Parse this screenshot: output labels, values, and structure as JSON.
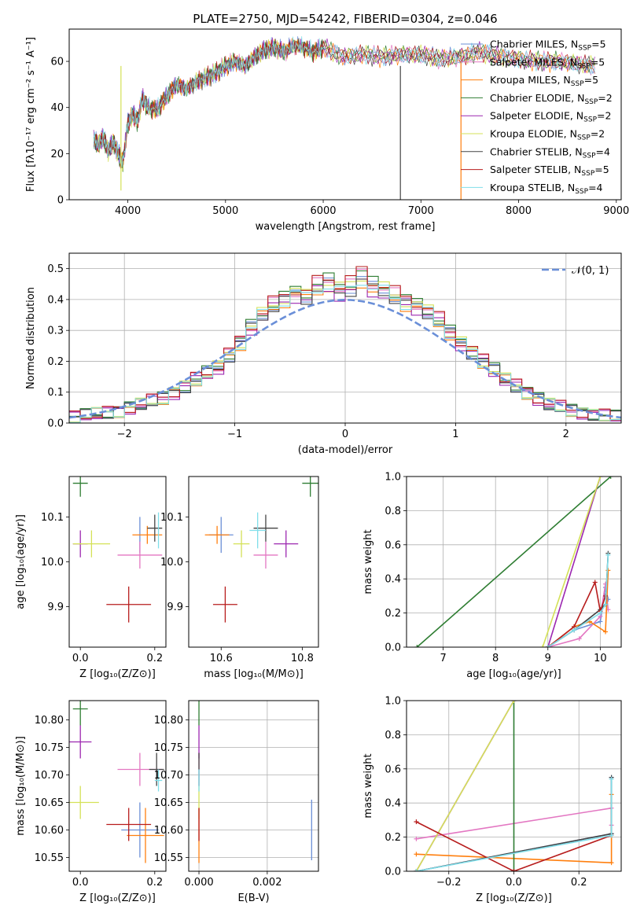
{
  "figure_title": "PLATE=2750, MJD=54242, FIBERID=0304, z=0.046",
  "colors": {
    "chabrier_miles": "#6b8fd6",
    "salpeter_miles": "#e377c2",
    "kroupa_miles": "#ff7f0e",
    "chabrier_elodie": "#2e7d32",
    "salpeter_elodie": "#9c27b0",
    "kroupa_elodie": "#d4e157",
    "chabrier_stelib": "#444444",
    "salpeter_stelib": "#b71c1c",
    "kroupa_stelib": "#80deea",
    "normal_curve": "#6a8fd8"
  },
  "chart_data": [
    {
      "id": "spectrum",
      "type": "line",
      "xlabel": "wavelength [Angstrom, rest frame]",
      "ylabel": "Flux [fλ10⁻¹⁷ erg cm⁻² s⁻¹ A⁻¹]",
      "xlim": [
        3400,
        9050
      ],
      "ylim": [
        0,
        74
      ],
      "xticks": [
        4000,
        5000,
        6000,
        7000,
        8000,
        9000
      ],
      "yticks": [
        0,
        20,
        40,
        60
      ],
      "legend_position": "top-right",
      "legend": [
        "Chabrier MILES, N_SSP=5",
        "Salpeter MILES, N_SSP=5",
        "Kroupa MILES, N_SSP=5",
        "Chabrier ELODIE, N_SSP=2",
        "Salpeter ELODIE, N_SSP=2",
        "Kroupa ELODIE, N_SSP=2",
        "Chabrier STELIB, N_SSP=4",
        "Salpeter STELIB, N_SSP=5",
        "Kroupa STELIB, N_SSP=4"
      ],
      "spectrum_x": [
        3650,
        3700,
        3750,
        3800,
        3850,
        3900,
        3950,
        4000,
        4050,
        4100,
        4150,
        4200,
        4300,
        4400,
        4500,
        4600,
        4700,
        4800,
        4900,
        5000,
        5100,
        5200,
        5300,
        5400,
        5500,
        5600,
        5700,
        5800,
        5900,
        6000,
        6200,
        6400,
        6600,
        6800,
        7000,
        7200,
        7400,
        7600,
        7800,
        8000,
        8200,
        8400,
        8600,
        8800
      ],
      "spectrum_y": [
        26,
        24,
        27,
        21,
        25,
        20,
        16,
        33,
        37,
        34,
        44,
        40,
        39,
        45,
        50,
        48,
        51,
        53,
        55,
        58,
        60,
        58,
        62,
        65,
        66,
        64,
        67,
        66,
        64,
        66,
        62,
        63,
        62,
        63,
        63,
        61,
        62,
        64,
        62,
        61,
        60,
        60,
        59,
        58
      ],
      "spectrum_dips": [
        [
          3930,
          4
        ],
        [
          6790,
          0
        ]
      ]
    },
    {
      "id": "residual-histogram",
      "type": "bar",
      "xlabel": "(data-model)/error",
      "ylabel": "Normed distribution",
      "xlim": [
        -2.5,
        2.5
      ],
      "ylim": [
        0,
        0.55
      ],
      "xticks": [
        -2,
        -1,
        0,
        1,
        2
      ],
      "yticks": [
        0.0,
        0.1,
        0.2,
        0.3,
        0.4,
        0.5
      ],
      "legend": [
        "𝒩(0, 1)"
      ],
      "bin_edges": [
        -2.5,
        -2.4,
        -2.3,
        -2.2,
        -2.1,
        -2.0,
        -1.9,
        -1.8,
        -1.7,
        -1.6,
        -1.5,
        -1.4,
        -1.3,
        -1.2,
        -1.1,
        -1.0,
        -0.9,
        -0.8,
        -0.7,
        -0.6,
        -0.5,
        -0.4,
        -0.3,
        -0.2,
        -0.1,
        0.0,
        0.1,
        0.2,
        0.3,
        0.4,
        0.5,
        0.6,
        0.7,
        0.8,
        0.9,
        1.0,
        1.1,
        1.2,
        1.3,
        1.4,
        1.5,
        1.6,
        1.7,
        1.8,
        1.9,
        2.0,
        2.1,
        2.2,
        2.3,
        2.4,
        2.5
      ],
      "hist_values": [
        0.02,
        0.025,
        0.03,
        0.035,
        0.04,
        0.05,
        0.06,
        0.07,
        0.08,
        0.1,
        0.12,
        0.14,
        0.16,
        0.18,
        0.22,
        0.26,
        0.31,
        0.35,
        0.38,
        0.4,
        0.42,
        0.41,
        0.44,
        0.45,
        0.43,
        0.44,
        0.47,
        0.44,
        0.43,
        0.41,
        0.39,
        0.38,
        0.36,
        0.33,
        0.29,
        0.26,
        0.23,
        0.2,
        0.17,
        0.14,
        0.12,
        0.1,
        0.08,
        0.06,
        0.05,
        0.04,
        0.035,
        0.03,
        0.025,
        0.02
      ],
      "series_offsets": [
        0.0,
        0.015,
        -0.015,
        0.02,
        -0.02,
        0.01,
        -0.01,
        0.025,
        -0.005
      ],
      "normal_curve": "N(0,1)"
    },
    {
      "id": "age-vs-Z",
      "type": "scatter",
      "xlabel": "Z [log₁₀(Z/Z⊙)]",
      "ylabel": "age  [log₁₀(age/yr)]",
      "xlim": [
        -0.03,
        0.23
      ],
      "ylim": [
        9.81,
        10.19
      ],
      "xticks": [
        0.0,
        0.2
      ],
      "yticks": [
        9.9,
        10.0,
        10.1
      ],
      "points": [
        {
          "x": 0.16,
          "y": 10.06,
          "xerr": 0.0,
          "yerr": 0.04
        },
        {
          "x": 0.16,
          "y": 10.015,
          "xerr": 0.06,
          "yerr": 0.03
        },
        {
          "x": 0.18,
          "y": 10.06,
          "xerr": 0.04,
          "yerr": 0.02
        },
        {
          "x": 0.0,
          "y": 10.175,
          "xerr": 0.02,
          "yerr": 0.03
        },
        {
          "x": 0.0,
          "y": 10.04,
          "xerr": 0.02,
          "yerr": 0.03
        },
        {
          "x": 0.03,
          "y": 10.04,
          "xerr": 0.05,
          "yerr": 0.03
        },
        {
          "x": 0.2,
          "y": 10.075,
          "xerr": 0.02,
          "yerr": 0.03
        },
        {
          "x": 0.13,
          "y": 9.905,
          "xerr": 0.06,
          "yerr": 0.04
        },
        {
          "x": 0.21,
          "y": 10.07,
          "xerr": 0.0,
          "yerr": 0.04
        }
      ]
    },
    {
      "id": "age-vs-mass",
      "type": "scatter",
      "xlabel": "mass [log₁₀(M/M⊙)]",
      "ylabel": "",
      "xlim": [
        10.52,
        10.84
      ],
      "ylim": [
        9.81,
        10.19
      ],
      "xticks": [
        10.6,
        10.8
      ],
      "yticks": [
        9.9,
        10.0,
        10.1
      ],
      "points": [
        {
          "x": 10.6,
          "y": 10.06,
          "xerr": 0.03,
          "yerr": 0.04
        },
        {
          "x": 10.71,
          "y": 10.015,
          "xerr": 0.03,
          "yerr": 0.03
        },
        {
          "x": 10.59,
          "y": 10.06,
          "xerr": 0.03,
          "yerr": 0.02
        },
        {
          "x": 10.82,
          "y": 10.175,
          "xerr": 0.02,
          "yerr": 0.03
        },
        {
          "x": 10.76,
          "y": 10.04,
          "xerr": 0.03,
          "yerr": 0.03
        },
        {
          "x": 10.65,
          "y": 10.04,
          "xerr": 0.02,
          "yerr": 0.03
        },
        {
          "x": 10.71,
          "y": 10.075,
          "xerr": 0.03,
          "yerr": 0.03
        },
        {
          "x": 10.61,
          "y": 9.905,
          "xerr": 0.03,
          "yerr": 0.04
        },
        {
          "x": 10.69,
          "y": 10.07,
          "xerr": 0.02,
          "yerr": 0.04
        }
      ]
    },
    {
      "id": "weight-vs-age",
      "type": "line",
      "xlabel": "age  [log₁₀(age/yr)]",
      "ylabel": "mass weight",
      "xlim": [
        6.3,
        10.4
      ],
      "ylim": [
        0,
        1.0
      ],
      "xticks": [
        7,
        8,
        9,
        10
      ],
      "yticks": [
        0.0,
        0.2,
        0.4,
        0.6,
        0.8,
        1.0
      ],
      "series": [
        {
          "x": [
            9.0,
            9.5,
            10.0,
            10.1,
            10.15
          ],
          "y": [
            0.0,
            0.1,
            0.15,
            0.35,
            0.28
          ]
        },
        {
          "x": [
            9.0,
            9.6,
            10.0,
            10.1,
            10.15
          ],
          "y": [
            0.0,
            0.05,
            0.18,
            0.37,
            0.22
          ]
        },
        {
          "x": [
            9.0,
            9.5,
            9.8,
            10.1,
            10.15
          ],
          "y": [
            0.0,
            0.12,
            0.15,
            0.09,
            0.45
          ]
        },
        {
          "x": [
            6.5,
            10.2
          ],
          "y": [
            0.0,
            1.0
          ]
        },
        {
          "x": [
            9.0,
            10.0
          ],
          "y": [
            0.0,
            1.0
          ]
        },
        {
          "x": [
            8.9,
            10.0
          ],
          "y": [
            0.0,
            1.0
          ]
        },
        {
          "x": [
            9.0,
            9.5,
            10.0,
            10.1,
            10.15
          ],
          "y": [
            0.0,
            0.1,
            0.22,
            0.25,
            0.55
          ]
        },
        {
          "x": [
            9.0,
            9.5,
            9.9,
            10.0,
            10.1
          ],
          "y": [
            0.0,
            0.12,
            0.38,
            0.21,
            0.3
          ]
        },
        {
          "x": [
            9.0,
            9.5,
            10.0,
            10.1,
            10.15
          ],
          "y": [
            0.0,
            0.1,
            0.2,
            0.25,
            0.54
          ]
        }
      ]
    },
    {
      "id": "mass-vs-Z",
      "type": "scatter",
      "xlabel": "Z [log₁₀(Z/Z⊙)]",
      "ylabel": "mass [log₁₀(M/M⊙)]",
      "xlim": [
        -0.03,
        0.23
      ],
      "ylim": [
        10.525,
        10.835
      ],
      "xticks": [
        0.0,
        0.2
      ],
      "yticks": [
        10.55,
        10.6,
        10.65,
        10.7,
        10.75,
        10.8
      ],
      "points": [
        {
          "x": 0.16,
          "y": 10.6,
          "xerr": 0.05,
          "yerr": 0.05
        },
        {
          "x": 0.16,
          "y": 10.71,
          "xerr": 0.06,
          "yerr": 0.03
        },
        {
          "x": 0.175,
          "y": 10.59,
          "xerr": 0.05,
          "yerr": 0.05
        },
        {
          "x": 0.0,
          "y": 10.82,
          "xerr": 0.02,
          "yerr": 0.03
        },
        {
          "x": 0.0,
          "y": 10.76,
          "xerr": 0.03,
          "yerr": 0.03
        },
        {
          "x": 0.0,
          "y": 10.65,
          "xerr": 0.05,
          "yerr": 0.03
        },
        {
          "x": 0.205,
          "y": 10.71,
          "xerr": 0.02,
          "yerr": 0.03
        },
        {
          "x": 0.13,
          "y": 10.61,
          "xerr": 0.06,
          "yerr": 0.03
        },
        {
          "x": 0.21,
          "y": 10.69,
          "xerr": 0.01,
          "yerr": 0.02
        }
      ]
    },
    {
      "id": "mass-vs-EBV",
      "type": "scatter",
      "xlabel": "E(B-V)",
      "ylabel": "",
      "xlim": [
        -0.0003,
        0.0035
      ],
      "ylim": [
        10.525,
        10.835
      ],
      "xticks": [
        0.0,
        0.002
      ],
      "yticks": [
        10.55,
        10.6,
        10.65,
        10.7,
        10.75,
        10.8
      ],
      "points": [
        {
          "x": 0.0033,
          "y": 10.6,
          "xerr": 0.0,
          "yerr": 0.055
        },
        {
          "x": 0.0,
          "y": 10.71,
          "xerr": 0.0,
          "yerr": 0.03
        },
        {
          "x": 0.0,
          "y": 10.59,
          "xerr": 0.0,
          "yerr": 0.05
        },
        {
          "x": 0.0,
          "y": 10.82,
          "xerr": 0.0,
          "yerr": 0.03
        },
        {
          "x": 0.0,
          "y": 10.76,
          "xerr": 0.0,
          "yerr": 0.03
        },
        {
          "x": 0.0,
          "y": 10.65,
          "xerr": 0.0,
          "yerr": 0.03
        },
        {
          "x": 0.0,
          "y": 10.71,
          "xerr": 0.0,
          "yerr": 0.03
        },
        {
          "x": 0.0,
          "y": 10.61,
          "xerr": 0.0,
          "yerr": 0.03
        },
        {
          "x": 0.0,
          "y": 10.69,
          "xerr": 0.0,
          "yerr": 0.02
        }
      ]
    },
    {
      "id": "weight-vs-Z",
      "type": "line",
      "xlabel": "Z [log₁₀(Z/Z⊙)]",
      "ylabel": "mass weight",
      "xlim": [
        -0.33,
        0.33
      ],
      "ylim": [
        0,
        1.0
      ],
      "xticks": [
        -0.2,
        0.0,
        0.2
      ],
      "yticks": [
        0.0,
        0.2,
        0.4,
        0.6,
        0.8,
        1.0
      ],
      "series": [
        {
          "x": [
            -0.3,
            0.3,
            0.3
          ],
          "y": [
            0.0,
            0.22,
            0.55
          ]
        },
        {
          "x": [
            -0.3,
            0.3,
            0.3
          ],
          "y": [
            0.19,
            0.37,
            0.27
          ]
        },
        {
          "x": [
            -0.3,
            0.3,
            0.3
          ],
          "y": [
            0.1,
            0.05,
            0.45
          ]
        },
        {
          "x": [
            0.0,
            0.0
          ],
          "y": [
            0.0,
            1.0
          ]
        },
        {
          "x": [
            -0.3,
            0.0
          ],
          "y": [
            0.0,
            1.0
          ]
        },
        {
          "x": [
            -0.3,
            0.0
          ],
          "y": [
            0.0,
            1.0
          ]
        },
        {
          "x": [
            -0.3,
            0.3,
            0.3
          ],
          "y": [
            0.0,
            0.22,
            0.55
          ]
        },
        {
          "x": [
            -0.3,
            0.0,
            0.0,
            0.3
          ],
          "y": [
            0.29,
            0.0,
            0.0,
            0.21
          ]
        },
        {
          "x": [
            -0.3,
            0.3,
            0.3
          ],
          "y": [
            0.0,
            0.21,
            0.54
          ]
        }
      ]
    }
  ]
}
